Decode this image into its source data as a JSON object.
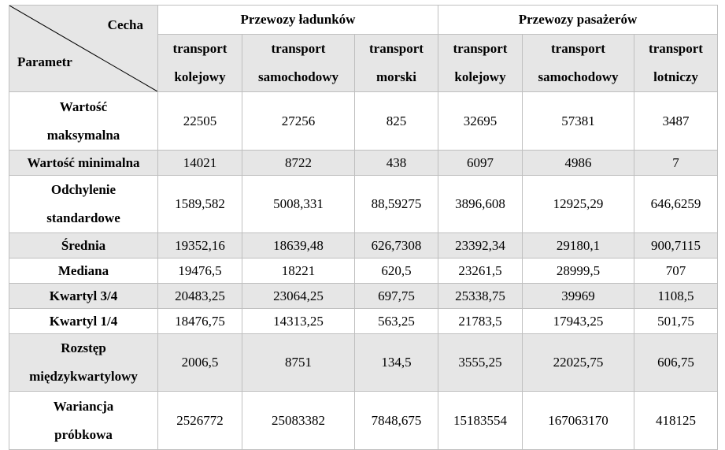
{
  "header": {
    "corner_top": "Cecha",
    "corner_bottom": "Parametr",
    "group_freight": "Przewozy ładunków",
    "group_passenger": "Przewozy pasażerów",
    "columns": [
      [
        "transport",
        "kolejowy"
      ],
      [
        "transport",
        "samochodowy"
      ],
      [
        "transport",
        "morski"
      ],
      [
        "transport",
        "kolejowy"
      ],
      [
        "transport",
        "samochodowy"
      ],
      [
        "transport",
        "lotniczy"
      ]
    ]
  },
  "rows": [
    {
      "label": [
        "Wartość",
        "maksymalna"
      ],
      "values": [
        "22505",
        "27256",
        "825",
        "32695",
        "57381",
        "3487"
      ]
    },
    {
      "label": [
        "Wartość minimalna"
      ],
      "values": [
        "14021",
        "8722",
        "438",
        "6097",
        "4986",
        "7"
      ]
    },
    {
      "label": [
        "Odchylenie",
        "standardowe"
      ],
      "values": [
        "1589,582",
        "5008,331",
        "88,59275",
        "3896,608",
        "12925,29",
        "646,6259"
      ]
    },
    {
      "label": [
        "Średnia"
      ],
      "values": [
        "19352,16",
        "18639,48",
        "626,7308",
        "23392,34",
        "29180,1",
        "900,7115"
      ]
    },
    {
      "label": [
        "Mediana"
      ],
      "values": [
        "19476,5",
        "18221",
        "620,5",
        "23261,5",
        "28999,5",
        "707"
      ]
    },
    {
      "label": [
        "Kwartyl 3/4"
      ],
      "values": [
        "20483,25",
        "23064,25",
        "697,75",
        "25338,75",
        "39969",
        "1108,5"
      ]
    },
    {
      "label": [
        "Kwartyl 1/4"
      ],
      "values": [
        "18476,75",
        "14313,25",
        "563,25",
        "21783,5",
        "17943,25",
        "501,75"
      ]
    },
    {
      "label": [
        "Rozstęp",
        "międzykwartylowy"
      ],
      "values": [
        "2006,5",
        "8751",
        "134,5",
        "3555,25",
        "22025,75",
        "606,75"
      ]
    },
    {
      "label": [
        "Wariancja",
        "próbkowa"
      ],
      "values": [
        "2526772",
        "25083382",
        "7848,675",
        "15183554",
        "167063170",
        "418125"
      ]
    }
  ]
}
